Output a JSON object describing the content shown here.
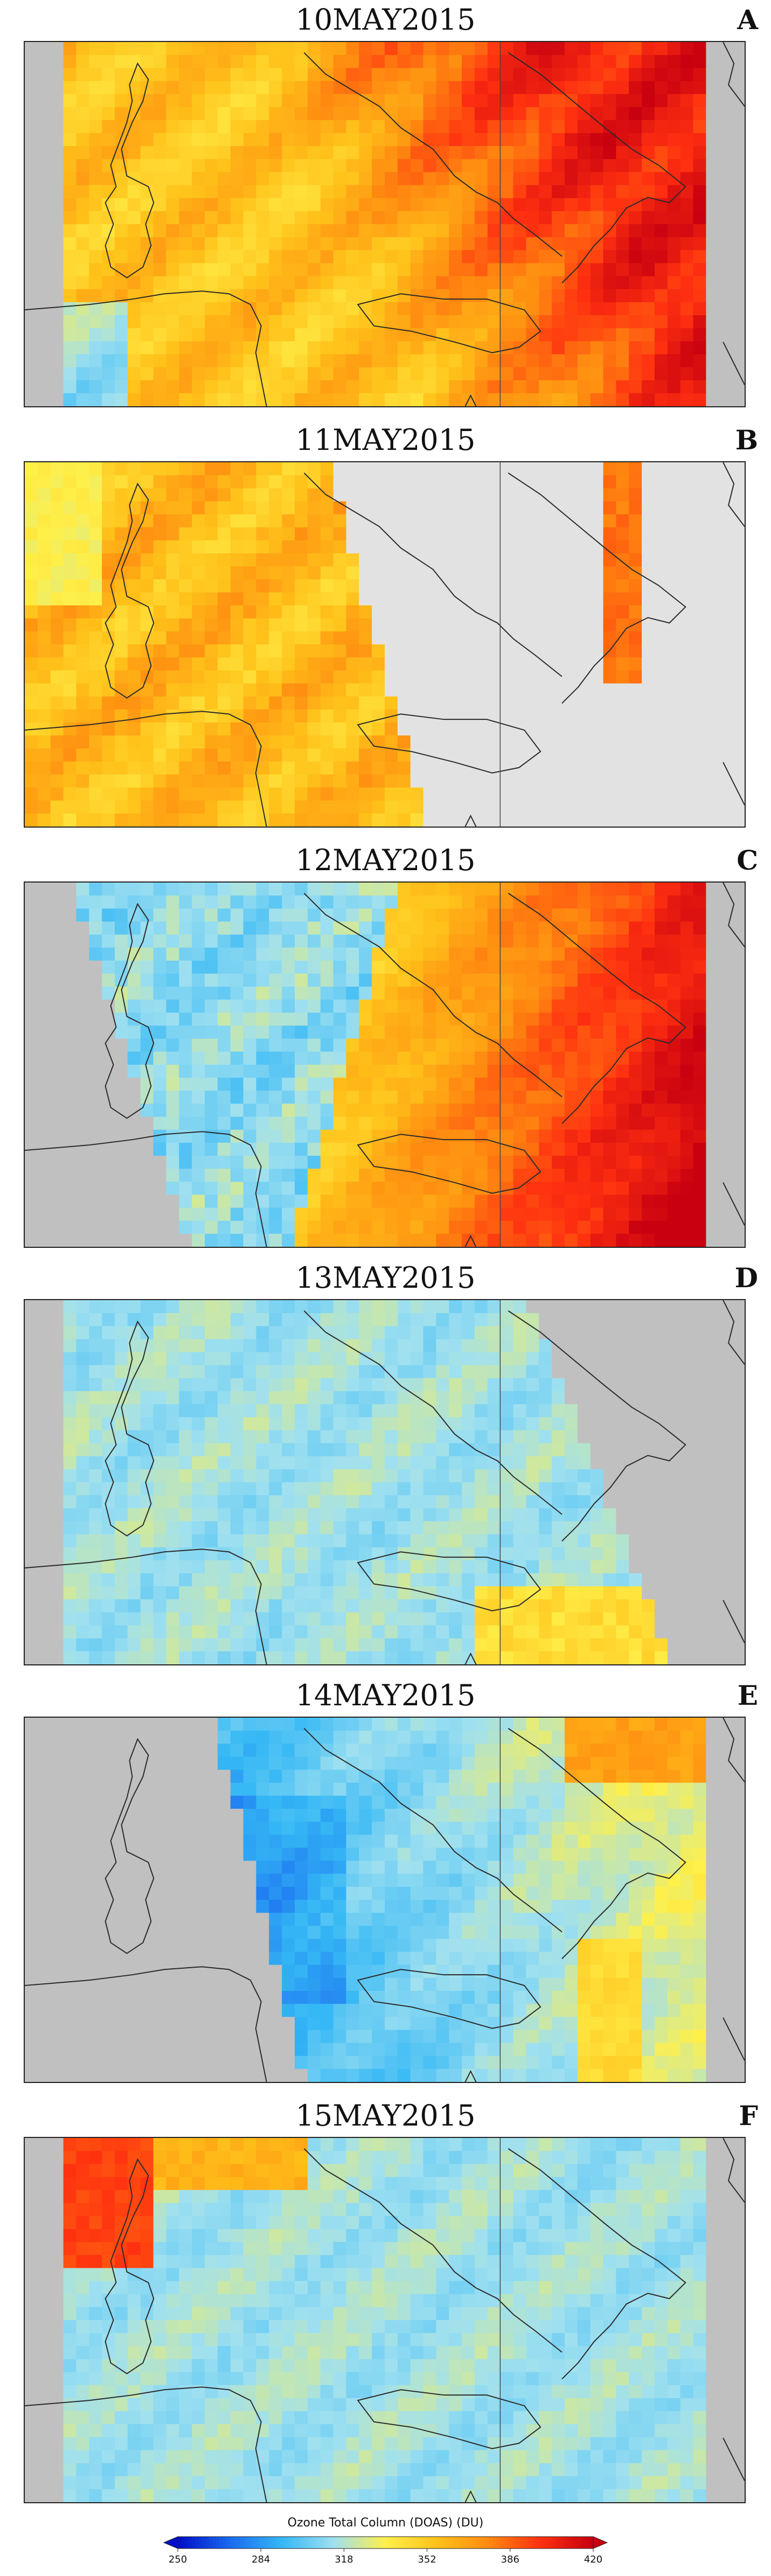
{
  "panels": [
    {
      "date": "10MAY2015",
      "letter": "A",
      "pattern": "A"
    },
    {
      "date": "11MAY2015",
      "letter": "B",
      "pattern": "B"
    },
    {
      "date": "12MAY2015",
      "letter": "C",
      "pattern": "C"
    },
    {
      "date": "13MAY2015",
      "letter": "D",
      "pattern": "D"
    },
    {
      "date": "14MAY2015",
      "letter": "E",
      "pattern": "E"
    },
    {
      "date": "15MAY2015",
      "letter": "F",
      "pattern": "F"
    }
  ],
  "legend": {
    "title": "Ozone Total Column (DOAS) (DU)",
    "ticks": [
      "250",
      "284",
      "318",
      "352",
      "386",
      "420"
    ],
    "min": 250,
    "max": 420,
    "colors": [
      "#0010c8",
      "#1a6cf0",
      "#35b8f5",
      "#9fe0f0",
      "#fff04a",
      "#ffc21a",
      "#ff8a10",
      "#ff3010",
      "#c80010"
    ]
  },
  "colors": {
    "nodata_dark": "#c0c0c0",
    "nodata_light": "#e2e2e2",
    "coast": "#2a2a2a"
  }
}
